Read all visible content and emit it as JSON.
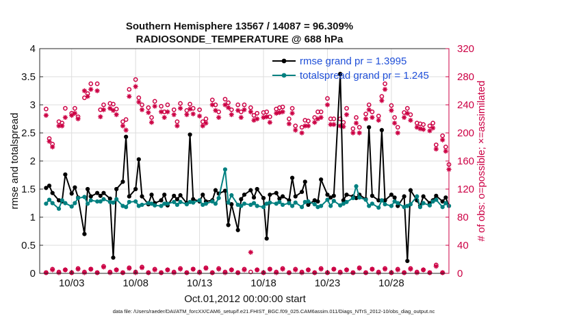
{
  "chart_data": {
    "type": "line",
    "title_line1": "Southern Hemisphere 13567 / 14087 = 96.309%",
    "title_line2": "RADIOSONDE_TEMPERATURE @ 688 hPa",
    "xlabel": "Oct.01,2012 00:00:00 start",
    "ylabel_left": "rmse and totalspread",
    "ylabel_right": "# of obs: o=possible; ×=assimilated",
    "footnote": "data file: /Users/raeder/DAI/ATM_forcXX/CAM6_setup/f.e21.FHIST_BGC.f09_025.CAM6assim.011/Diags_NTrS_2012-10/obs_diag_output.nc",
    "xlim": [
      0.5,
      32.5
    ],
    "ylim_left": [
      0,
      4
    ],
    "ylim_right": [
      0,
      320
    ],
    "x_ticks": [
      3,
      8,
      13,
      18,
      23,
      28
    ],
    "x_tick_labels": [
      "10/03",
      "10/08",
      "10/13",
      "10/18",
      "10/23",
      "10/28"
    ],
    "y_left_ticks": [
      0,
      0.5,
      1,
      1.5,
      2,
      2.5,
      3,
      3.5,
      4
    ],
    "y_left_tick_labels": [
      "0",
      "0.5",
      "1",
      "1.5",
      "2",
      "2.5",
      "3",
      "3.5",
      "4"
    ],
    "y_right_ticks": [
      0,
      40,
      80,
      120,
      160,
      200,
      240,
      280,
      320
    ],
    "y_right_tick_labels": [
      "0",
      "40",
      "80",
      "120",
      "160",
      "200",
      "240",
      "280",
      "320"
    ],
    "colors": {
      "rmse": "#000000",
      "spread": "#008080",
      "obs": "#cc0044",
      "legend_text": "#1f4fd8"
    },
    "legend": [
      {
        "key": "rmse",
        "label": "rmse grand pr = 1.3995"
      },
      {
        "key": "spread",
        "label": "totalspread grand pr = 1.245"
      }
    ],
    "series": [
      {
        "name": "rmse",
        "x": [
          1.0,
          1.25,
          1.5,
          2.0,
          2.25,
          2.5,
          3.0,
          3.25,
          3.5,
          4.0,
          4.25,
          4.5,
          5.0,
          5.25,
          5.5,
          6.0,
          6.25,
          6.5,
          7.0,
          7.25,
          7.5,
          8.0,
          8.25,
          8.5,
          9.0,
          9.25,
          9.5,
          10.0,
          10.25,
          10.5,
          11.0,
          11.25,
          11.5,
          12.0,
          12.25,
          12.5,
          13.0,
          13.25,
          13.5,
          14.0,
          14.25,
          14.5,
          15.0,
          15.25,
          15.5,
          16.0,
          16.25,
          16.5,
          17.0,
          17.25,
          17.5,
          18.0,
          18.25,
          18.5,
          19.0,
          19.25,
          19.5,
          20.0,
          20.25,
          20.5,
          21.0,
          21.25,
          21.5,
          22.0,
          22.25,
          22.5,
          23.0,
          23.25,
          23.5,
          24.0,
          24.25,
          24.5,
          25.0,
          25.25,
          25.5,
          26.0,
          26.25,
          26.5,
          27.0,
          27.25,
          27.5,
          28.0,
          28.25,
          28.5,
          29.0,
          29.25,
          29.5,
          30.0,
          30.25,
          30.5,
          31.0,
          31.25,
          31.5,
          32.0,
          32.25,
          32.5
        ],
        "values": [
          1.52,
          1.56,
          1.43,
          1.3,
          1.28,
          1.76,
          1.42,
          1.53,
          1.35,
          0.7,
          1.5,
          1.37,
          1.43,
          1.38,
          1.43,
          1.33,
          0.28,
          1.5,
          1.63,
          2.43,
          1.37,
          1.5,
          2.03,
          1.37,
          1.23,
          1.4,
          1.25,
          1.3,
          1.4,
          1.21,
          1.38,
          1.32,
          1.39,
          1.25,
          2.47,
          1.32,
          1.28,
          1.4,
          1.28,
          1.3,
          1.48,
          1.42,
          1.47,
          0.86,
          1.23,
          0.77,
          1.32,
          1.4,
          1.48,
          1.35,
          1.5,
          1.34,
          0.62,
          1.4,
          1.43,
          1.33,
          1.37,
          1.3,
          1.7,
          1.37,
          1.45,
          1.63,
          1.22,
          1.3,
          1.28,
          1.67,
          1.4,
          1.35,
          1.38,
          3.55,
          1.3,
          1.4,
          1.37,
          1.34,
          1.4,
          1.32,
          2.6,
          1.38,
          1.3,
          2.55,
          1.3,
          1.4,
          1.35,
          1.2,
          1.37,
          0.22,
          1.48,
          1.3,
          1.2,
          1.37,
          1.25,
          1.3,
          1.38,
          1.28,
          1.35,
          1.2
        ]
      },
      {
        "name": "totalspread",
        "x": [
          1.0,
          1.25,
          1.5,
          2.0,
          2.25,
          2.5,
          3.0,
          3.25,
          3.5,
          4.0,
          4.25,
          4.5,
          5.0,
          5.25,
          5.5,
          6.0,
          6.25,
          6.5,
          7.0,
          7.25,
          7.5,
          8.0,
          8.25,
          8.5,
          9.0,
          9.25,
          9.5,
          10.0,
          10.25,
          10.5,
          11.0,
          11.25,
          11.5,
          12.0,
          12.25,
          12.5,
          13.0,
          13.25,
          13.5,
          14.0,
          14.25,
          14.5,
          15.0,
          15.25,
          15.5,
          16.0,
          16.25,
          16.5,
          17.0,
          17.25,
          17.5,
          18.0,
          18.25,
          18.5,
          19.0,
          19.25,
          19.5,
          20.0,
          20.25,
          20.5,
          21.0,
          21.25,
          21.5,
          22.0,
          22.25,
          22.5,
          23.0,
          23.25,
          23.5,
          24.0,
          24.25,
          24.5,
          25.0,
          25.25,
          25.5,
          26.0,
          26.25,
          26.5,
          27.0,
          27.25,
          27.5,
          28.0,
          28.25,
          28.5,
          29.0,
          29.25,
          29.5,
          30.0,
          30.25,
          30.5,
          31.0,
          31.25,
          31.5,
          32.0,
          32.25,
          32.5
        ],
        "values": [
          1.24,
          1.31,
          1.25,
          1.15,
          1.3,
          1.25,
          1.19,
          1.25,
          1.34,
          1.36,
          1.24,
          1.3,
          1.28,
          1.28,
          1.32,
          1.27,
          1.26,
          1.32,
          1.2,
          1.18,
          1.27,
          1.28,
          1.2,
          1.22,
          1.25,
          1.24,
          1.21,
          1.2,
          1.24,
          1.24,
          1.27,
          1.22,
          1.27,
          1.23,
          1.27,
          1.26,
          1.3,
          1.22,
          1.24,
          1.28,
          1.24,
          1.34,
          1.85,
          1.26,
          1.39,
          1.22,
          1.2,
          1.24,
          1.22,
          1.25,
          1.2,
          1.18,
          1.24,
          1.26,
          1.24,
          1.27,
          1.22,
          1.25,
          1.2,
          1.26,
          1.18,
          1.27,
          1.28,
          1.23,
          1.18,
          1.2,
          1.31,
          1.2,
          1.29,
          1.21,
          1.24,
          1.27,
          1.34,
          1.55,
          1.35,
          1.31,
          1.2,
          1.24,
          1.17,
          1.3,
          1.23,
          1.2,
          1.28,
          1.25,
          1.18,
          1.2,
          1.23,
          1.37,
          1.18,
          1.25,
          1.21,
          1.28,
          1.31,
          1.18,
          1.25,
          1.2
        ]
      },
      {
        "name": "obs_possible",
        "x": [
          1.0,
          1.25,
          1.5,
          2.0,
          2.25,
          2.5,
          3.0,
          3.25,
          3.5,
          4.0,
          4.25,
          4.5,
          5.0,
          5.25,
          5.5,
          6.0,
          6.25,
          6.5,
          7.0,
          7.25,
          7.5,
          8.0,
          8.25,
          8.5,
          9.0,
          9.25,
          9.5,
          10.0,
          10.25,
          10.5,
          11.0,
          11.25,
          11.5,
          12.0,
          12.25,
          12.5,
          13.0,
          13.25,
          13.5,
          14.0,
          14.25,
          14.5,
          15.0,
          15.25,
          15.5,
          16.0,
          16.25,
          16.5,
          17.0,
          17.25,
          17.5,
          18.0,
          18.25,
          18.5,
          19.0,
          19.25,
          19.5,
          20.0,
          20.25,
          20.5,
          21.0,
          21.25,
          21.5,
          22.0,
          22.25,
          22.5,
          23.0,
          23.25,
          23.5,
          24.0,
          24.25,
          24.5,
          25.0,
          25.25,
          25.5,
          26.0,
          26.25,
          26.5,
          27.0,
          27.25,
          27.5,
          28.0,
          28.25,
          28.5,
          29.0,
          29.25,
          29.5,
          30.0,
          30.25,
          30.5,
          31.0,
          31.25,
          31.5,
          32.0,
          32.25,
          32.5
        ],
        "values": [
          234,
          192,
          184,
          216,
          214,
          235,
          228,
          235,
          223,
          250,
          256,
          270,
          270,
          233,
          240,
          242,
          241,
          234,
          216,
          219,
          262,
          276,
          250,
          240,
          236,
          222,
          245,
          238,
          230,
          240,
          233,
          216,
          242,
          232,
          241,
          235,
          233,
          216,
          220,
          247,
          240,
          230,
          248,
          243,
          233,
          240,
          230,
          240,
          236,
          225,
          228,
          229,
          230,
          223,
          234,
          236,
          237,
          220,
          235,
          210,
          208,
          218,
          217,
          222,
          230,
          230,
          249,
          220,
          220,
          220,
          215,
          235,
          206,
          222,
          208,
          227,
          240,
          230,
          224,
          252,
          270,
          239,
          222,
          208,
          229,
          235,
          226,
          214,
          213,
          212,
          210,
          214,
          183,
          196,
          180,
          155
        ]
      },
      {
        "name": "obs_assimilated",
        "x": [
          1.0,
          1.25,
          1.5,
          2.0,
          2.25,
          2.5,
          3.0,
          3.25,
          3.5,
          4.0,
          4.25,
          4.5,
          5.0,
          5.25,
          5.5,
          6.0,
          6.25,
          6.5,
          7.0,
          7.25,
          7.5,
          8.0,
          8.25,
          8.5,
          9.0,
          9.25,
          9.5,
          10.0,
          10.25,
          10.5,
          11.0,
          11.25,
          11.5,
          12.0,
          12.25,
          12.5,
          13.0,
          13.25,
          13.5,
          14.0,
          14.25,
          14.5,
          15.0,
          15.25,
          15.5,
          16.0,
          16.25,
          16.5,
          17.0,
          17.25,
          17.5,
          18.0,
          18.25,
          18.5,
          19.0,
          19.25,
          19.5,
          20.0,
          20.25,
          20.5,
          21.0,
          21.25,
          21.5,
          22.0,
          22.25,
          22.5,
          23.0,
          23.25,
          23.5,
          24.0,
          24.25,
          24.5,
          25.0,
          25.25,
          25.5,
          26.0,
          26.25,
          26.5,
          27.0,
          27.25,
          27.5,
          28.0,
          28.25,
          28.5,
          29.0,
          29.25,
          29.5,
          30.0,
          30.25,
          30.5,
          31.0,
          31.25,
          31.5,
          32.0,
          32.25,
          32.5
        ],
        "values": [
          225,
          188,
          180,
          210,
          210,
          222,
          225,
          228,
          220,
          260,
          252,
          262,
          260,
          223,
          233,
          235,
          232,
          226,
          210,
          204,
          252,
          266,
          244,
          233,
          229,
          215,
          238,
          230,
          222,
          230,
          226,
          210,
          235,
          226,
          234,
          227,
          224,
          210,
          214,
          240,
          232,
          222,
          240,
          236,
          226,
          232,
          222,
          233,
          230,
          218,
          220,
          222,
          223,
          215,
          228,
          229,
          230,
          213,
          228,
          204,
          200,
          210,
          210,
          215,
          220,
          222,
          240,
          212,
          212,
          210,
          209,
          226,
          200,
          214,
          200,
          220,
          233,
          222,
          218,
          246,
          262,
          232,
          214,
          200,
          222,
          228,
          218,
          208,
          206,
          205,
          203,
          207,
          177,
          190,
          174,
          148
        ]
      },
      {
        "name": "obs_possible_low",
        "x": [
          1.0,
          1.5,
          2.0,
          2.5,
          3.0,
          3.5,
          4.0,
          4.5,
          5.0,
          5.5,
          6.0,
          6.5,
          7.0,
          7.5,
          8.0,
          8.5,
          9.0,
          9.5,
          10.0,
          10.5,
          11.0,
          11.5,
          12.0,
          12.5,
          13.0,
          13.5,
          14.0,
          14.5,
          15.0,
          15.5,
          16.0,
          16.5,
          17.0,
          17.5,
          18.0,
          18.5,
          19.0,
          19.5,
          20.0,
          20.5,
          21.0,
          21.5,
          22.0,
          22.5,
          23.0,
          23.5,
          24.0,
          24.5,
          25.0,
          25.5,
          26.0,
          26.5,
          27.0,
          27.5,
          28.0,
          28.5,
          29.0,
          29.5,
          30.0,
          30.5,
          31.0,
          31.5,
          32.0
        ],
        "values": [
          1,
          6,
          2,
          5,
          1,
          7,
          2,
          6,
          1,
          10,
          2,
          5,
          1,
          8,
          2,
          9,
          1,
          6,
          1,
          5,
          2,
          7,
          1,
          6,
          2,
          8,
          1,
          7,
          2,
          5,
          1,
          6,
          2,
          5,
          1,
          6,
          2,
          7,
          1,
          6,
          2,
          5,
          1,
          7,
          1,
          6,
          2,
          5,
          1,
          8,
          1,
          6,
          2,
          7,
          1,
          6,
          1,
          7,
          2,
          5,
          1,
          12,
          1
        ]
      },
      {
        "name": "obs_assimilated_low",
        "x": [
          1.0,
          1.5,
          2.0,
          2.5,
          3.0,
          3.5,
          4.0,
          4.5,
          5.0,
          5.5,
          6.0,
          6.5,
          7.0,
          7.5,
          8.0,
          8.5,
          9.0,
          9.5,
          10.0,
          10.5,
          11.0,
          11.5,
          12.0,
          12.5,
          13.0,
          13.5,
          14.0,
          14.5,
          15.0,
          15.5,
          16.0,
          16.5,
          17.0,
          17.5,
          18.0,
          18.5,
          19.0,
          19.5,
          20.0,
          20.5,
          21.0,
          21.5,
          22.0,
          22.5,
          23.0,
          23.5,
          24.0,
          24.5,
          25.0,
          25.5,
          26.0,
          26.5,
          27.0,
          27.5,
          28.0,
          28.5,
          29.0,
          29.5,
          30.0,
          30.5,
          31.0,
          31.5,
          32.0
        ],
        "values": [
          1,
          5,
          1,
          5,
          1,
          6,
          1,
          6,
          1,
          9,
          1,
          5,
          1,
          7,
          1,
          8,
          1,
          5,
          1,
          5,
          1,
          6,
          1,
          6,
          1,
          7,
          1,
          6,
          1,
          5,
          1,
          5,
          30,
          5,
          1,
          6,
          1,
          6,
          1,
          5,
          1,
          5,
          1,
          6,
          1,
          6,
          1,
          5,
          1,
          7,
          1,
          6,
          1,
          6,
          1,
          5,
          1,
          6,
          1,
          5,
          1,
          10,
          1
        ]
      }
    ]
  }
}
